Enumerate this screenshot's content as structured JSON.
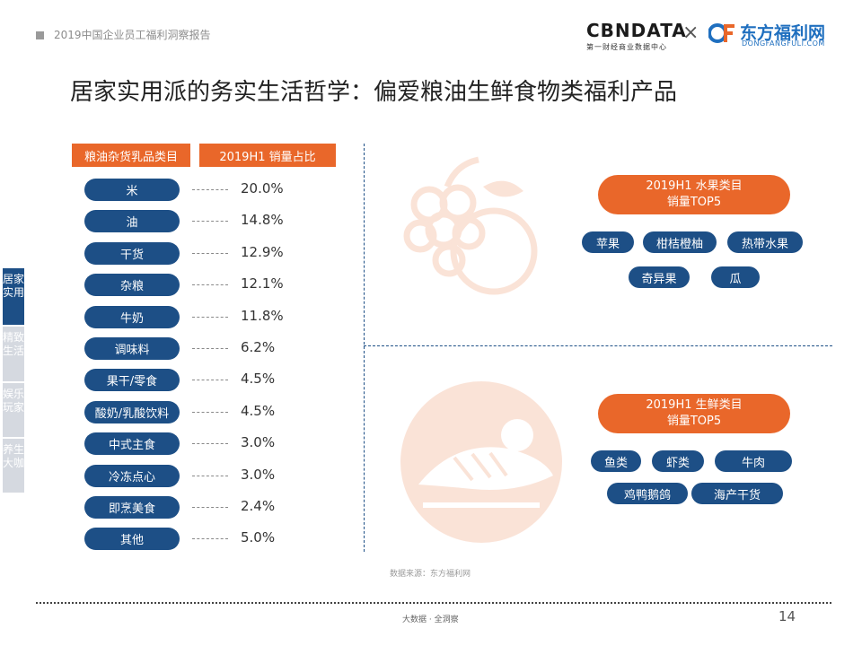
{
  "header": {
    "report_title": "2019中国企业员工福利洞察报告",
    "logo_cbn": "CBNDATA",
    "logo_cbn_sub": "第一财经商业数据中心",
    "cross": "×",
    "logo_df_name": "东方福利网",
    "logo_df_url": "DONGFANGFULI.COM"
  },
  "title": "居家实用派的务实生活哲学：偏爱粮油生鲜食物类福利产品",
  "left_table": {
    "col1_header": "粮油杂货乳品类目",
    "col2_header": "2019H1  销量占比",
    "rows": [
      {
        "label": "米",
        "pct": "20.0%"
      },
      {
        "label": "油",
        "pct": "14.8%"
      },
      {
        "label": "干货",
        "pct": "12.9%"
      },
      {
        "label": "杂粮",
        "pct": "12.1%"
      },
      {
        "label": "牛奶",
        "pct": "11.8%"
      },
      {
        "label": "调味料",
        "pct": "6.2%"
      },
      {
        "label": "果干/零食",
        "pct": "4.5%"
      },
      {
        "label": "酸奶/乳酸饮料",
        "pct": "4.5%"
      },
      {
        "label": "中式主食",
        "pct": "3.0%"
      },
      {
        "label": "冷冻点心",
        "pct": "3.0%"
      },
      {
        "label": "即烹美食",
        "pct": "2.4%"
      },
      {
        "label": "其他",
        "pct": "5.0%"
      }
    ]
  },
  "fruit": {
    "header_line1": "2019H1  水果类目",
    "header_line2": "销量TOP5",
    "items": [
      "苹果",
      "柑桔橙柚",
      "热带水果",
      "奇异果",
      "瓜"
    ]
  },
  "fresh": {
    "header_line1": "2019H1  生鲜类目",
    "header_line2": "销量TOP5",
    "items": [
      "鱼类",
      "虾类",
      "牛肉",
      "鸡鸭鹅鸽",
      "海产干货"
    ]
  },
  "side_nav": [
    {
      "label": "居家实用",
      "active": true
    },
    {
      "label": "精致生活",
      "active": false
    },
    {
      "label": "娱乐玩家",
      "active": false
    },
    {
      "label": "养生大咖",
      "active": false
    }
  ],
  "footer": {
    "source": "数据来源：东方福利网",
    "brand": "大数据 · 全洞察",
    "page": "14"
  },
  "colors": {
    "accent_orange": "#e9672a",
    "navy": "#1d4f86",
    "df_blue": "#1f6fbf"
  }
}
